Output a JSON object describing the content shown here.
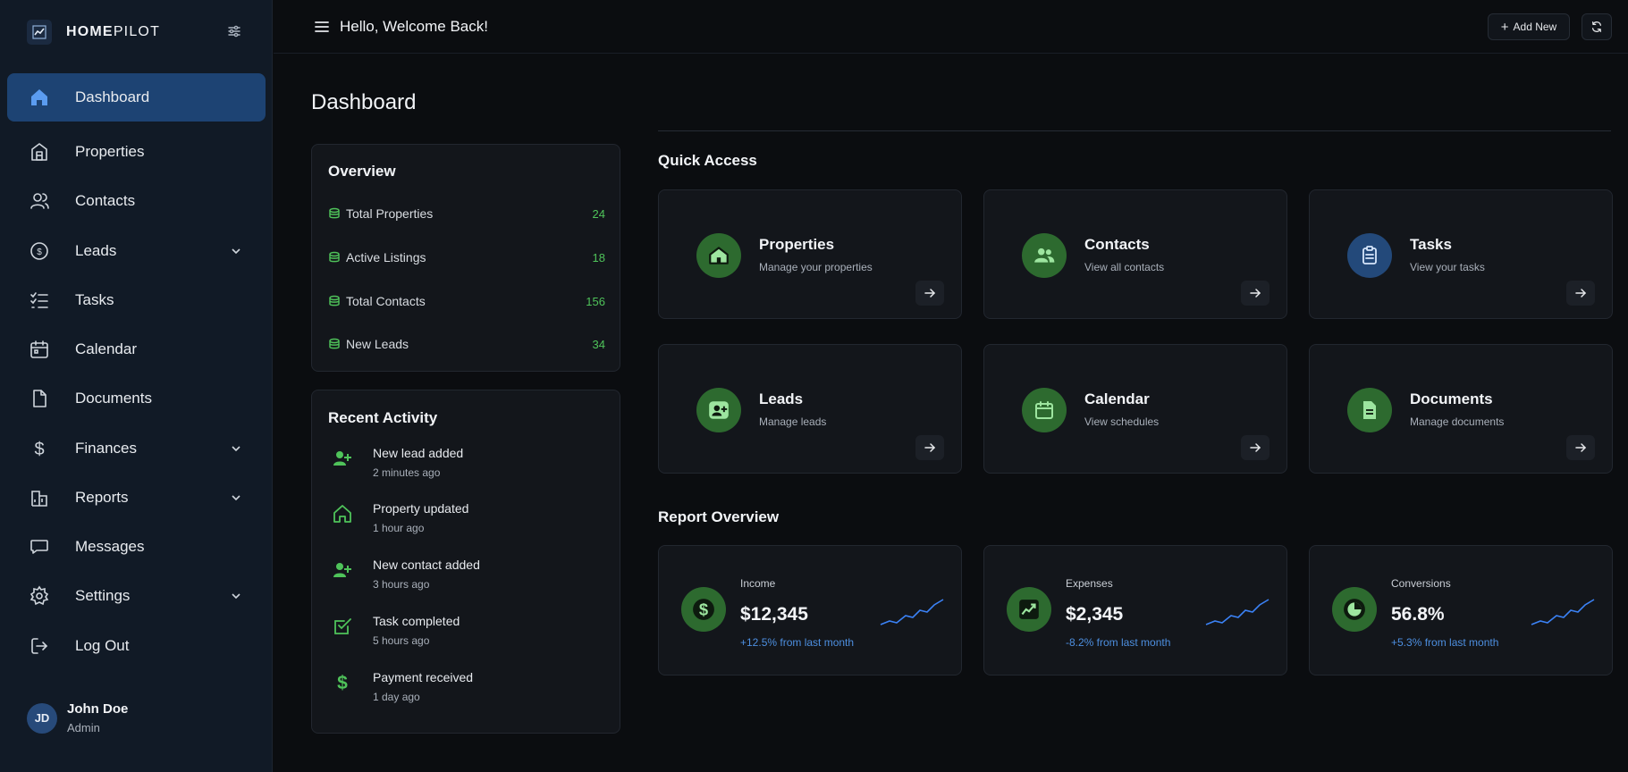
{
  "brand": {
    "name_bold": "HOME",
    "name_rest": "PILOT"
  },
  "sidebar": {
    "items": [
      {
        "label": "Dashboard",
        "icon": "home-icon",
        "active": true,
        "expandable": false
      },
      {
        "label": "Properties",
        "icon": "building-icon",
        "expandable": false
      },
      {
        "label": "Contacts",
        "icon": "users-icon",
        "expandable": false
      },
      {
        "label": "Leads",
        "icon": "dollar-circle-icon",
        "expandable": true
      },
      {
        "label": "Tasks",
        "icon": "list-checks-icon",
        "expandable": false
      },
      {
        "label": "Calendar",
        "icon": "calendar-icon",
        "expandable": false
      },
      {
        "label": "Documents",
        "icon": "file-icon",
        "expandable": false
      },
      {
        "label": "Finances",
        "icon": "dollar-icon",
        "expandable": true
      },
      {
        "label": "Reports",
        "icon": "report-chart-icon",
        "expandable": true
      },
      {
        "label": "Messages",
        "icon": "message-icon",
        "expandable": false
      },
      {
        "label": "Settings",
        "icon": "gear-icon",
        "expandable": true
      },
      {
        "label": "Log Out",
        "icon": "logout-icon",
        "expandable": false
      }
    ]
  },
  "user": {
    "initials": "JD",
    "name": "John Doe",
    "role": "Admin"
  },
  "topbar": {
    "greeting": "Hello, Welcome Back!",
    "add_new_label": "Add New"
  },
  "page": {
    "title": "Dashboard"
  },
  "overview": {
    "title": "Overview",
    "rows": [
      {
        "label": "Total Properties",
        "value": "24"
      },
      {
        "label": "Active Listings",
        "value": "18"
      },
      {
        "label": "Total Contacts",
        "value": "156"
      },
      {
        "label": "New Leads",
        "value": "34"
      }
    ]
  },
  "recent_activity": {
    "title": "Recent Activity",
    "items": [
      {
        "title": "New lead added",
        "time": "2 minutes ago",
        "icon": "user-plus-icon"
      },
      {
        "title": "Property updated",
        "time": "1 hour ago",
        "icon": "home-outline-icon"
      },
      {
        "title": "New contact added",
        "time": "3 hours ago",
        "icon": "user-plus-icon"
      },
      {
        "title": "Task completed",
        "time": "5 hours ago",
        "icon": "check-square-icon"
      },
      {
        "title": "Payment received",
        "time": "1 day ago",
        "icon": "dollar-icon"
      }
    ]
  },
  "quick_access": {
    "title": "Quick Access",
    "cards": [
      {
        "title": "Properties",
        "subtitle": "Manage your properties",
        "icon": "house-icon",
        "color": "#2d6a2f"
      },
      {
        "title": "Contacts",
        "subtitle": "View all contacts",
        "icon": "users-icon",
        "color": "#2d6a2f"
      },
      {
        "title": "Tasks",
        "subtitle": "View your tasks",
        "icon": "clipboard-icon",
        "color": "#23497a"
      },
      {
        "title": "Leads",
        "subtitle": "Manage leads",
        "icon": "user-badge-icon",
        "color": "#2d6a2f"
      },
      {
        "title": "Calendar",
        "subtitle": "View schedules",
        "icon": "calendar-icon",
        "color": "#2d6a2f"
      },
      {
        "title": "Documents",
        "subtitle": "Manage documents",
        "icon": "document-icon",
        "color": "#2d6a2f"
      }
    ]
  },
  "report_overview": {
    "title": "Report Overview",
    "cards": [
      {
        "label": "Income",
        "value": "$12,345",
        "change": "+12.5% from last month",
        "icon": "dollar-circle-icon"
      },
      {
        "label": "Expenses",
        "value": "$2,345",
        "change": "-8.2% from last month",
        "icon": "trend-chart-icon"
      },
      {
        "label": "Conversions",
        "value": "56.8%",
        "change": "+5.3% from last month",
        "icon": "pie-chart-icon"
      }
    ]
  },
  "colors": {
    "accent_blue": "#1d4373",
    "accent_green": "#4fc35a",
    "change_blue": "#4d8fe0",
    "sparkline": "#3b82f6"
  }
}
